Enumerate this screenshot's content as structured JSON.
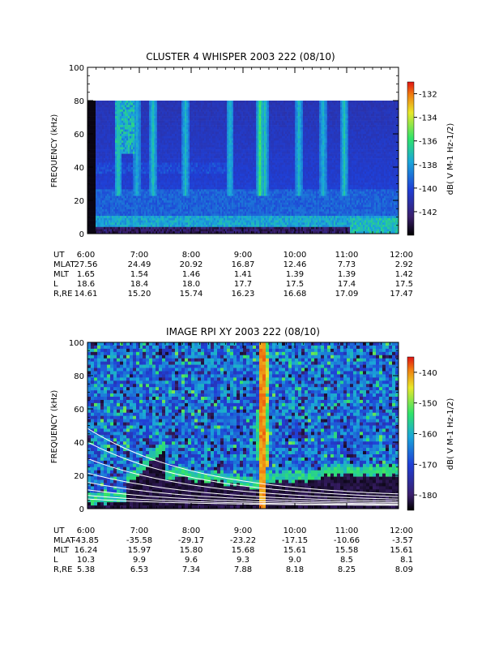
{
  "colors": {
    "bg_black": "#000000",
    "spec_deep": "#2a1f6b",
    "spec_blue": "#1f3fd6",
    "spec_cyan": "#1aa6d9",
    "spec_green": "#2fe36b",
    "spec_yellow": "#e8e82a",
    "spec_red": "#e01414"
  },
  "chart_data": [
    {
      "type": "heatmap",
      "title": "CLUSTER 4 WHISPER 2003 222 (08/10)",
      "ylabel": "FREQUENCY (kHz)",
      "ylim": [
        0,
        100
      ],
      "yticks": [
        "0",
        "20",
        "40",
        "60",
        "80",
        "100"
      ],
      "data_max_khz": 80,
      "x_ticks": [
        "6:00",
        "7:00",
        "8:00",
        "9:00",
        "10:00",
        "11:00",
        "12:00"
      ],
      "colorbar": {
        "label": "dB( V M⁻¹ Hz⁻¹ᐟ²)",
        "label_text": "dB( V M-1 Hz-1/2)",
        "range": [
          -144,
          -131
        ],
        "ticks": [
          "-132",
          "-134",
          "-136",
          "-138",
          "-140",
          "-142"
        ],
        "tick_values": [
          -132,
          -134,
          -136,
          -138,
          -140,
          -142
        ]
      },
      "ephemeris": [
        {
          "name": "UT",
          "values": [
            "6:00",
            "7:00",
            "8:00",
            "9:00",
            "10:00",
            "11:00",
            "12:00"
          ]
        },
        {
          "name": "MLAT",
          "values": [
            "27.56",
            "24.49",
            "20.92",
            "16.87",
            "12.46",
            "7.73",
            "2.92"
          ]
        },
        {
          "name": "MLT",
          "values": [
            "1.65",
            "1.54",
            "1.46",
            "1.41",
            "1.39",
            "1.39",
            "1.42"
          ]
        },
        {
          "name": "L",
          "values": [
            "18.6",
            "18.4",
            "18.0",
            "17.7",
            "17.5",
            "17.4",
            "17.5"
          ]
        },
        {
          "name": "R,RE",
          "values": [
            "14.61",
            "15.20",
            "15.74",
            "16.23",
            "16.68",
            "17.09",
            "17.47"
          ]
        }
      ]
    },
    {
      "type": "heatmap",
      "title": "IMAGE RPI XY 2003 222 (08/10)",
      "ylabel": "FREQUENCY (kHz)",
      "ylim": [
        0,
        100
      ],
      "yticks": [
        "0",
        "20",
        "40",
        "60",
        "80",
        "100"
      ],
      "x_ticks": [
        "6:00",
        "7:00",
        "8:00",
        "9:00",
        "10:00",
        "11:00",
        "12:00"
      ],
      "colorbar": {
        "label_text": "dB( V M-1 Hz-1/2)",
        "range": [
          -185,
          -135
        ],
        "ticks": [
          "-140",
          "-150",
          "-160",
          "-170",
          "-180"
        ],
        "tick_values": [
          -140,
          -150,
          -160,
          -170,
          -180
        ]
      },
      "ephemeris": [
        {
          "name": "UT",
          "values": [
            "6:00",
            "7:00",
            "8:00",
            "9:00",
            "10:00",
            "11:00",
            "12:00"
          ]
        },
        {
          "name": "MLAT",
          "values": [
            "-43.85",
            "-35.58",
            "-29.17",
            "-23.22",
            "-17.15",
            "-10.66",
            "-3.57"
          ]
        },
        {
          "name": "MLT",
          "values": [
            "16.24",
            "15.97",
            "15.80",
            "15.68",
            "15.61",
            "15.58",
            "15.61"
          ]
        },
        {
          "name": "L",
          "values": [
            "10.3",
            "9.9",
            "9.6",
            "9.3",
            "9.0",
            "8.5",
            "8.1"
          ]
        },
        {
          "name": "R,RE",
          "values": [
            "5.38",
            "6.53",
            "7.34",
            "7.88",
            "8.18",
            "8.25",
            "8.09"
          ]
        }
      ]
    }
  ]
}
